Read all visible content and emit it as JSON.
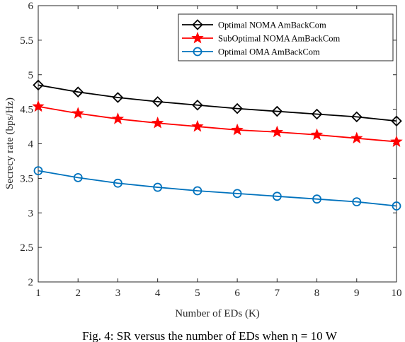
{
  "chart_data": {
    "type": "line",
    "xlabel": "Number of EDs (K)",
    "ylabel": "Secrecy rate (bps/Hz)",
    "xlim": [
      1,
      10
    ],
    "ylim": [
      2,
      6
    ],
    "xticks": [
      "1",
      "2",
      "3",
      "4",
      "5",
      "6",
      "7",
      "8",
      "9",
      "10"
    ],
    "yticks": [
      "2",
      "2.5",
      "3",
      "3.5",
      "4",
      "4.5",
      "5",
      "5.5",
      "6"
    ],
    "grid": false,
    "legend_position": "top-right",
    "x": [
      1,
      2,
      3,
      4,
      5,
      6,
      7,
      8,
      9,
      10
    ],
    "series": [
      {
        "name": "Optimal NOMA AmBackCom",
        "color": "#000000",
        "marker": "diamond",
        "values": [
          4.85,
          4.75,
          4.67,
          4.61,
          4.56,
          4.51,
          4.47,
          4.43,
          4.39,
          4.33
        ]
      },
      {
        "name": "SubOptimal NOMA AmBackCom",
        "color": "#ff0000",
        "marker": "star",
        "values": [
          4.54,
          4.44,
          4.36,
          4.3,
          4.25,
          4.2,
          4.17,
          4.13,
          4.08,
          4.03
        ]
      },
      {
        "name": "Optimal OMA AmBackCom",
        "color": "#0072bd",
        "marker": "circle",
        "values": [
          3.61,
          3.51,
          3.43,
          3.37,
          3.32,
          3.28,
          3.24,
          3.2,
          3.16,
          3.1
        ]
      }
    ]
  },
  "caption": "Fig. 4: SR versus the number of EDs when η = 10 W"
}
